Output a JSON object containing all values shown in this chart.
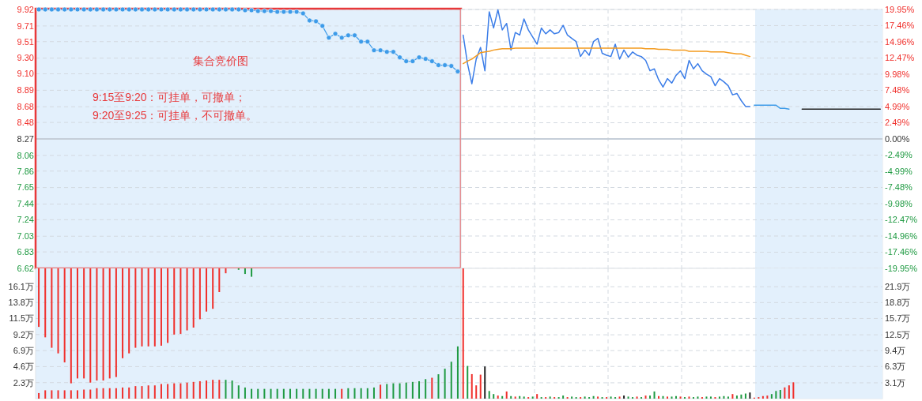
{
  "chart_data": [
    {
      "type": "line",
      "categories": [
        null,
        null,
        null,
        null,
        null,
        null,
        null,
        null,
        null,
        null,
        null,
        null,
        null,
        null,
        null,
        null,
        null,
        null,
        null,
        null,
        null,
        null,
        null,
        null,
        null,
        null,
        null,
        null,
        null,
        null,
        null,
        null,
        null,
        null,
        null,
        null,
        null,
        null,
        null,
        null,
        null,
        null,
        null,
        null,
        null,
        null,
        null,
        null,
        null,
        null,
        null,
        null,
        null,
        null,
        null,
        null,
        null,
        null,
        null,
        null,
        null,
        null,
        null,
        null,
        null,
        null
      ],
      "ylim": [
        6.62,
        9.92
      ],
      "yticks": [
        9.92,
        9.71,
        9.51,
        {
          "value": 9.3,
          "label": "9.30"
        },
        {
          "value": 9.1,
          "label": "9.10"
        },
        8.89,
        8.68,
        8.48,
        8.27,
        8.06,
        7.86,
        7.65,
        7.44,
        7.24,
        7.03,
        6.83,
        6.62
      ],
      "tick_labels": "y",
      "grid": "y",
      "ref_lines": [
        {
          "axis": "y",
          "value": 8.27,
          "color": "#c5ced8"
        }
      ],
      "annotations": [
        "集合竞价图",
        "9:15至9:20：可挂单，可撤单；",
        "9:20至9:25：可挂单，不可撤单。"
      ],
      "series": [
        {
          "color": "#3d9be9",
          "marker": "circle",
          "values": [
            9.92,
            9.92,
            9.92,
            9.92,
            9.92,
            9.92,
            9.92,
            9.92,
            9.92,
            9.92,
            9.92,
            9.92,
            9.92,
            9.92,
            9.92,
            9.92,
            9.92,
            9.92,
            9.92,
            9.92,
            9.92,
            9.92,
            9.92,
            9.92,
            9.92,
            9.92,
            9.92,
            9.92,
            9.92,
            9.92,
            9.92,
            9.92,
            9.91,
            9.91,
            9.9,
            9.9,
            9.9,
            9.89,
            9.89,
            9.89,
            9.89,
            9.87,
            9.78,
            9.77,
            9.71,
            9.56,
            9.61,
            9.56,
            9.59,
            9.59,
            9.51,
            9.51,
            9.4,
            9.4,
            9.38,
            9.38,
            9.31,
            9.26,
            9.26,
            9.31,
            9.29,
            9.26,
            9.21,
            9.21,
            9.2,
            9.13
          ]
        }
      ]
    },
    {
      "type": "line",
      "categories": [
        null,
        null,
        null,
        null,
        null,
        null,
        null,
        null,
        null,
        null,
        null,
        null,
        null,
        null,
        null,
        null,
        null,
        null,
        null,
        null,
        null,
        null,
        null,
        null,
        null,
        null,
        null,
        null,
        null,
        null,
        null,
        null,
        null,
        null,
        null,
        null,
        null,
        null,
        null,
        null,
        null,
        null,
        null,
        null,
        null,
        null,
        null,
        null,
        null,
        null,
        null,
        null,
        null,
        null,
        null,
        null,
        null,
        null,
        null,
        null,
        null,
        null,
        null,
        null,
        null,
        null,
        null,
        null,
        null,
        null,
        null,
        null,
        null,
        null,
        null,
        null,
        null,
        null,
        null,
        null,
        null,
        null,
        null,
        null,
        null,
        null,
        null,
        null,
        null,
        null,
        null,
        null,
        null,
        null,
        null,
        null,
        null
      ],
      "ylim": [
        -19.95,
        19.95
      ],
      "yticks": [
        {
          "value": 19.95,
          "label": "19.95%"
        },
        {
          "value": 17.46,
          "label": "17.46%"
        },
        {
          "value": 14.96,
          "label": "14.96%"
        },
        {
          "value": 12.47,
          "label": "12.47%"
        },
        {
          "value": 9.98,
          "label": "9.98%"
        },
        {
          "value": 7.48,
          "label": "7.48%"
        },
        {
          "value": 4.99,
          "label": "4.99%"
        },
        {
          "value": 2.49,
          "label": "2.49%"
        },
        {
          "value": 0,
          "label": "0.00%"
        },
        {
          "value": -2.49,
          "label": "-2.49%"
        },
        {
          "value": -4.99,
          "label": "-4.99%"
        },
        {
          "value": -7.48,
          "label": "-7.48%"
        },
        {
          "value": -9.98,
          "label": "-9.98%"
        },
        {
          "value": -12.47,
          "label": "-12.47%"
        },
        {
          "value": -14.96,
          "label": "-14.96%"
        },
        {
          "value": -17.46,
          "label": "-17.46%"
        },
        {
          "value": -19.95,
          "label": "-19.95%"
        }
      ],
      "tick_labels": "y",
      "grid": true,
      "ref_lines": [
        {
          "axis": "y",
          "value": 0,
          "color": "#c5ced8"
        }
      ],
      "series": [
        {
          "color": "#3b7de8",
          "values": [
            16.0,
            11.6,
            8.5,
            12.3,
            14.1,
            10.5,
            19.6,
            17.1,
            19.9,
            16.8,
            17.8,
            13.7,
            16.4,
            16.0,
            18.5,
            16.8,
            15.7,
            14.6,
            17.1,
            16.2,
            16.8,
            16.2,
            16.4,
            17.5,
            16.0,
            15.5,
            15.0,
            12.7,
            13.7,
            12.9,
            15.0,
            15.5,
            13.2,
            12.9,
            12.7,
            14.6,
            12.3,
            13.7,
            12.6,
            13.4,
            12.9,
            12.7,
            12.1,
            10.5,
            10.8,
            9.1,
            8.0,
            9.3,
            8.6,
            9.8,
            10.5,
            9.3,
            12.1,
            10.8,
            11.6,
            10.5,
            10.0,
            9.6,
            8.2,
            9.3,
            8.8,
            8.2,
            6.8,
            7.0,
            5.9,
            5.0,
            5.0,
            null,
            null,
            null,
            null,
            null,
            null,
            null,
            null,
            null,
            null,
            null,
            null,
            null,
            null,
            null,
            null,
            null,
            null,
            null,
            null,
            null,
            null,
            null,
            null,
            null,
            null,
            null,
            null,
            null,
            null
          ]
        },
        {
          "color": "#f39a1e",
          "values": [
            11.6,
            12.0,
            12.3,
            12.8,
            13.3,
            13.4,
            13.5,
            13.7,
            13.8,
            13.9,
            13.9,
            13.9,
            14.0,
            14.0,
            14.0,
            14.0,
            14.0,
            14.0,
            14.0,
            14.0,
            14.0,
            14.0,
            14.0,
            14.0,
            14.0,
            14.0,
            14.0,
            14.0,
            14.0,
            14.0,
            14.0,
            14.0,
            14.0,
            14.0,
            14.0,
            14.0,
            14.0,
            14.0,
            14.0,
            14.0,
            14.0,
            14.0,
            13.9,
            13.9,
            13.9,
            13.8,
            13.8,
            13.8,
            13.7,
            13.7,
            13.7,
            13.7,
            13.5,
            13.5,
            13.5,
            13.5,
            13.5,
            13.4,
            13.4,
            13.4,
            13.4,
            13.3,
            13.2,
            13.1,
            13.1,
            12.9,
            12.7,
            null,
            null,
            null,
            null,
            null,
            null,
            null,
            null,
            null,
            null,
            null,
            null,
            null,
            null,
            null,
            null,
            null,
            null,
            null,
            null,
            null,
            null,
            null,
            null,
            null,
            null,
            null,
            null,
            null,
            null
          ]
        },
        {
          "color": "#3d9be9",
          "values": [
            null,
            null,
            null,
            null,
            null,
            null,
            null,
            null,
            null,
            null,
            null,
            null,
            null,
            null,
            null,
            null,
            null,
            null,
            null,
            null,
            null,
            null,
            null,
            null,
            null,
            null,
            null,
            null,
            null,
            null,
            null,
            null,
            null,
            null,
            null,
            null,
            null,
            null,
            null,
            null,
            null,
            null,
            null,
            null,
            null,
            null,
            null,
            null,
            null,
            null,
            null,
            null,
            null,
            null,
            null,
            null,
            null,
            null,
            null,
            null,
            null,
            null,
            null,
            null,
            null,
            null,
            null,
            5.2,
            5.2,
            5.2,
            5.2,
            5.2,
            5.2,
            4.7,
            4.7,
            4.6,
            null,
            null,
            null,
            null,
            null,
            null,
            null,
            null,
            null,
            null,
            null,
            null,
            null,
            null,
            null,
            null,
            null,
            null,
            null,
            null,
            null
          ]
        },
        {
          "color": "#222222",
          "values": [
            null,
            null,
            null,
            null,
            null,
            null,
            null,
            null,
            null,
            null,
            null,
            null,
            null,
            null,
            null,
            null,
            null,
            null,
            null,
            null,
            null,
            null,
            null,
            null,
            null,
            null,
            null,
            null,
            null,
            null,
            null,
            null,
            null,
            null,
            null,
            null,
            null,
            null,
            null,
            null,
            null,
            null,
            null,
            null,
            null,
            null,
            null,
            null,
            null,
            null,
            null,
            null,
            null,
            null,
            null,
            null,
            null,
            null,
            null,
            null,
            null,
            null,
            null,
            null,
            null,
            null,
            null,
            null,
            null,
            null,
            null,
            null,
            null,
            null,
            null,
            null,
            null,
            null,
            4.6,
            4.6,
            4.6,
            4.6,
            4.6,
            4.6,
            4.6,
            4.6,
            4.6,
            4.6,
            4.6,
            4.6,
            4.6,
            4.6,
            4.6,
            4.6,
            4.6,
            4.6,
            4.6
          ]
        }
      ]
    },
    {
      "type": "bar",
      "categories": [
        null,
        null,
        null,
        null,
        null,
        null,
        null,
        null,
        null,
        null,
        null,
        null,
        null,
        null,
        null,
        null,
        null,
        null,
        null,
        null,
        null,
        null,
        null,
        null,
        null,
        null,
        null,
        null,
        null,
        null,
        null,
        null,
        null,
        null,
        null,
        null,
        null,
        null,
        null,
        null,
        null,
        null,
        null,
        null,
        null,
        null,
        null,
        null,
        null,
        null,
        null,
        null,
        null,
        null,
        null,
        null,
        null,
        null,
        null,
        null,
        null,
        null,
        null,
        null,
        null,
        null
      ],
      "ylim": [
        0,
        18.7
      ],
      "yticks": [
        {
          "value": 2.3,
          "label": "2.3万"
        },
        {
          "value": 4.6,
          "label": "4.6万"
        },
        {
          "value": 6.9,
          "label": "6.9万"
        },
        {
          "value": 9.2,
          "label": "9.2万"
        },
        {
          "value": 11.5,
          "label": "11.5万"
        },
        {
          "value": 13.8,
          "label": "13.8万"
        },
        {
          "value": 16.1,
          "label": "16.1万"
        }
      ],
      "tick_labels": "y",
      "grid": "y",
      "series": [
        {
          "base": [
            10.3,
            8.8,
            7.3,
            6.5,
            5.2,
            2.2,
            2.9,
            2.9,
            2.3,
            2.6,
            2.6,
            2.9,
            3.1,
            5.8,
            6.5,
            7.3,
            7.5,
            7.5,
            7.5,
            7.6,
            8.0,
            9.2,
            9.3,
            9.8,
            10.2,
            11.4,
            12.5,
            12.9,
            15.3,
            18.0,
            null,
            18.5,
            17.9,
            17.5,
            null,
            null,
            null,
            null,
            null,
            null,
            null,
            null,
            null,
            null,
            null,
            null,
            null,
            null,
            null,
            null,
            null,
            null,
            null,
            null,
            null,
            null,
            null,
            null,
            null,
            null,
            null,
            null,
            null,
            null,
            null,
            null
          ],
          "values": [
            8.4,
            9.9,
            11.4,
            12.2,
            13.5,
            16.5,
            15.8,
            15.8,
            16.4,
            16.1,
            16.1,
            15.8,
            15.6,
            12.9,
            12.2,
            11.4,
            11.2,
            11.2,
            11.2,
            11.1,
            10.7,
            9.5,
            9.4,
            8.9,
            8.5,
            7.3,
            6.2,
            5.8,
            3.4,
            0.7,
            null,
            0.2,
            0.8,
            1.2,
            null,
            null,
            null,
            null,
            null,
            null,
            null,
            null,
            null,
            null,
            null,
            null,
            null,
            null,
            null,
            null,
            null,
            null,
            null,
            null,
            null,
            null,
            null,
            null,
            null,
            null,
            null,
            null,
            null,
            null,
            null,
            null
          ],
          "colors": [
            "#f0302c",
            "#f0302c",
            "#f0302c",
            "#f0302c",
            "#f0302c",
            "#f0302c",
            "#f0302c",
            "#f0302c",
            "#f0302c",
            "#f0302c",
            "#f0302c",
            "#f0302c",
            "#f0302c",
            "#f0302c",
            "#f0302c",
            "#f0302c",
            "#f0302c",
            "#f0302c",
            "#f0302c",
            "#f0302c",
            "#f0302c",
            "#f0302c",
            "#f0302c",
            "#f0302c",
            "#f0302c",
            "#f0302c",
            "#f0302c",
            "#f0302c",
            "#f0302c",
            "#f0302c",
            null,
            "#1f9a42",
            "#1f9a42",
            "#1f9a42",
            null,
            null,
            null,
            null,
            null,
            null,
            null,
            null,
            null,
            null,
            null,
            null,
            null,
            null,
            null,
            null,
            null,
            null,
            null,
            null,
            null,
            null,
            null,
            null,
            null,
            null,
            null,
            null,
            null,
            null,
            null,
            null
          ]
        },
        {
          "values": [
            0.8,
            1.2,
            1.2,
            1.2,
            1.2,
            1.2,
            1.2,
            1.3,
            1.3,
            1.5,
            1.5,
            1.5,
            1.5,
            1.6,
            1.6,
            1.8,
            1.8,
            1.9,
            1.9,
            2.1,
            2.1,
            2.2,
            2.2,
            2.3,
            2.4,
            2.5,
            2.6,
            2.7,
            2.7,
            2.7,
            2.6,
            1.9,
            1.6,
            1.4,
            1.4,
            1.4,
            1.4,
            1.4,
            1.4,
            1.4,
            1.4,
            1.4,
            1.4,
            1.4,
            1.4,
            1.4,
            1.4,
            1.4,
            1.5,
            1.5,
            1.5,
            1.5,
            1.6,
            2.0,
            2.1,
            2.2,
            2.2,
            2.3,
            2.4,
            2.5,
            2.8,
            3.0,
            3.5,
            4.3,
            5.3,
            7.5
          ],
          "colors": [
            "#f0302c",
            "#f0302c",
            "#f0302c",
            "#f0302c",
            "#f0302c",
            "#f0302c",
            "#f0302c",
            "#f0302c",
            "#f0302c",
            "#f0302c",
            "#f0302c",
            "#f0302c",
            "#f0302c",
            "#f0302c",
            "#f0302c",
            "#f0302c",
            "#f0302c",
            "#f0302c",
            "#f0302c",
            "#f0302c",
            "#f0302c",
            "#f0302c",
            "#f0302c",
            "#f0302c",
            "#f0302c",
            "#f0302c",
            "#f0302c",
            "#f0302c",
            "#f0302c",
            "#1f9a42",
            "#1f9a42",
            "#1f9a42",
            "#1f9a42",
            "#1f9a42",
            "#1f9a42",
            "#1f9a42",
            "#1f9a42",
            "#1f9a42",
            "#1f9a42",
            "#1f9a42",
            "#1f9a42",
            "#1f9a42",
            "#1f9a42",
            "#1f9a42",
            "#1f9a42",
            "#1f9a42",
            "#1f9a42",
            "#f0302c",
            "#1f9a42",
            "#1f9a42",
            "#1f9a42",
            "#1f9a42",
            "#1f9a42",
            "#f0302c",
            "#1f9a42",
            "#1f9a42",
            "#1f9a42",
            "#1f9a42",
            "#1f9a42",
            "#1f9a42",
            "#1f9a42",
            "#f0302c",
            "#1f9a42",
            "#1f9a42",
            "#1f9a42",
            "#1f9a42"
          ]
        }
      ]
    },
    {
      "type": "bar",
      "categories": [
        null,
        null,
        null,
        null,
        null,
        null,
        null,
        null,
        null,
        null,
        null,
        null,
        null,
        null,
        null,
        null,
        null,
        null,
        null,
        null,
        null,
        null,
        null,
        null,
        null,
        null,
        null,
        null,
        null,
        null,
        null,
        null,
        null,
        null,
        null,
        null,
        null,
        null,
        null,
        null,
        null,
        null,
        null,
        null,
        null,
        null,
        null,
        null,
        null,
        null,
        null,
        null,
        null,
        null,
        null,
        null,
        null,
        null,
        null,
        null,
        null,
        null,
        null,
        null,
        null,
        null,
        null,
        null,
        null,
        null,
        null,
        null,
        null,
        null,
        null,
        null,
        null,
        null,
        null,
        null,
        null,
        null,
        null,
        null,
        null,
        null,
        null,
        null,
        null,
        null,
        null,
        null,
        null,
        null,
        null,
        null,
        null
      ],
      "y2lim": [
        0,
        25.5
      ],
      "y2ticks": [
        {
          "value": 3.1,
          "label": "3.1万"
        },
        {
          "value": 6.3,
          "label": "6.3万"
        },
        {
          "value": 9.4,
          "label": "9.4万"
        },
        {
          "value": 12.5,
          "label": "12.5万"
        },
        {
          "value": 15.7,
          "label": "15.7万"
        },
        {
          "value": 18.8,
          "label": "18.8万"
        },
        {
          "value": 21.9,
          "label": "21.9万"
        }
      ],
      "tick_labels": "y",
      "grid": true,
      "series": [
        {
          "axis": "y2",
          "values": [
            25.5,
            6.4,
            4.8,
            2.6,
            4.7,
            6.3,
            1.5,
            0.9,
            0.6,
            0.5,
            1.4,
            0.5,
            0.4,
            0.5,
            0.4,
            0.3,
            0.4,
            0.9,
            0.3,
            0.3,
            0.4,
            0.3,
            0.3,
            0.6,
            0.3,
            0.4,
            0.3,
            0.3,
            0.4,
            0.3,
            0.5,
            0.4,
            0.3,
            0.3,
            0.4,
            0.3,
            0.4,
            0.6,
            0.4,
            0.3,
            0.4,
            0.3,
            0.6,
            0.6,
            1.4,
            0.5,
            0.5,
            0.4,
            0.4,
            0.5,
            0.4,
            0.3,
            0.4,
            0.3,
            0.4,
            0.3,
            0.4,
            0.4,
            0.3,
            0.4,
            0.5,
            0.4,
            0.9,
            0.6,
            0.8,
            1.0,
            1.2,
            0.2,
            0.3,
            0.5,
            0.6,
            0.9,
            1.5,
            1.7,
            2.2,
            2.6,
            3.2,
            null,
            null,
            null,
            null,
            null,
            null,
            null,
            null,
            null,
            null,
            null,
            null,
            null,
            null,
            null,
            null,
            null,
            null,
            null,
            null
          ],
          "colors": [
            "#f0302c",
            "#1f9a42",
            "#f0302c",
            "#f0302c",
            "#f0302c",
            "#222222",
            "#1f9a42",
            "#1f9a42",
            "#f0302c",
            "#1f9a42",
            "#f0302c",
            "#1f9a42",
            "#f0302c",
            "#1f9a42",
            "#1f9a42",
            "#f0302c",
            "#1f9a42",
            "#f0302c",
            "#1f9a42",
            "#f0302c",
            "#1f9a42",
            "#f0302c",
            "#1f9a42",
            "#1f9a42",
            "#f0302c",
            "#1f9a42",
            "#1f9a42",
            "#f0302c",
            "#1f9a42",
            "#1f9a42",
            "#1f9a42",
            "#f0302c",
            "#1f9a42",
            "#f0302c",
            "#1f9a42",
            "#1f9a42",
            "#f0302c",
            "#222222",
            "#1f9a42",
            "#1f9a42",
            "#f0302c",
            "#1f9a42",
            "#f0302c",
            "#1f9a42",
            "#1f9a42",
            "#f0302c",
            "#1f9a42",
            "#f0302c",
            "#1f9a42",
            "#1f9a42",
            "#f0302c",
            "#1f9a42",
            "#f0302c",
            "#1f9a42",
            "#1f9a42",
            "#f0302c",
            "#1f9a42",
            "#1f9a42",
            "#f0302c",
            "#1f9a42",
            "#1f9a42",
            "#1f9a42",
            "#f0302c",
            "#1f9a42",
            "#1f9a42",
            "#1f9a42",
            "#222222",
            "#f0302c",
            "#f0302c",
            "#f0302c",
            "#f0302c",
            "#1f9a42",
            "#1f9a42",
            "#1f9a42",
            "#f0302c",
            "#f0302c",
            "#f0302c",
            null,
            null,
            null,
            null,
            null,
            null,
            null,
            null,
            null,
            null,
            null,
            null,
            null,
            null,
            null,
            null,
            null,
            null,
            null,
            null
          ]
        }
      ]
    }
  ]
}
